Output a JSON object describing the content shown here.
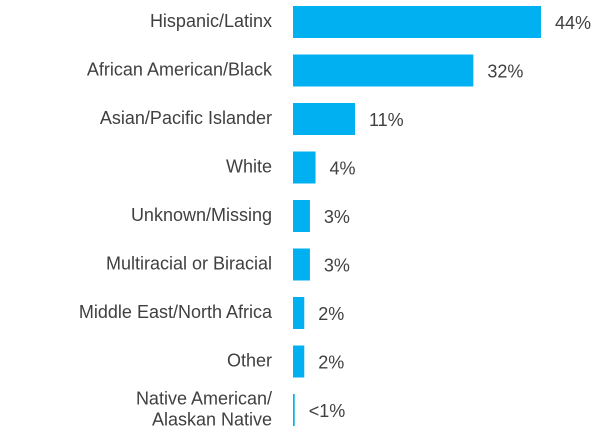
{
  "chart_data": {
    "type": "bar",
    "orientation": "horizontal",
    "categories": [
      "Hispanic/Latinx",
      "African American/Black",
      "Asian/Pacific Islander",
      "White",
      "Unknown/Missing",
      "Multiracial or Biracial",
      "Middle East/North Africa",
      "Other",
      "Native American/\nAlaskan Native"
    ],
    "values": [
      44,
      32,
      11,
      4,
      3,
      3,
      2,
      2,
      0.3
    ],
    "value_labels": [
      "44%",
      "32%",
      "11%",
      "4%",
      "3%",
      "3%",
      "2%",
      "2%",
      "<1%"
    ],
    "color": "#00b0f0"
  }
}
